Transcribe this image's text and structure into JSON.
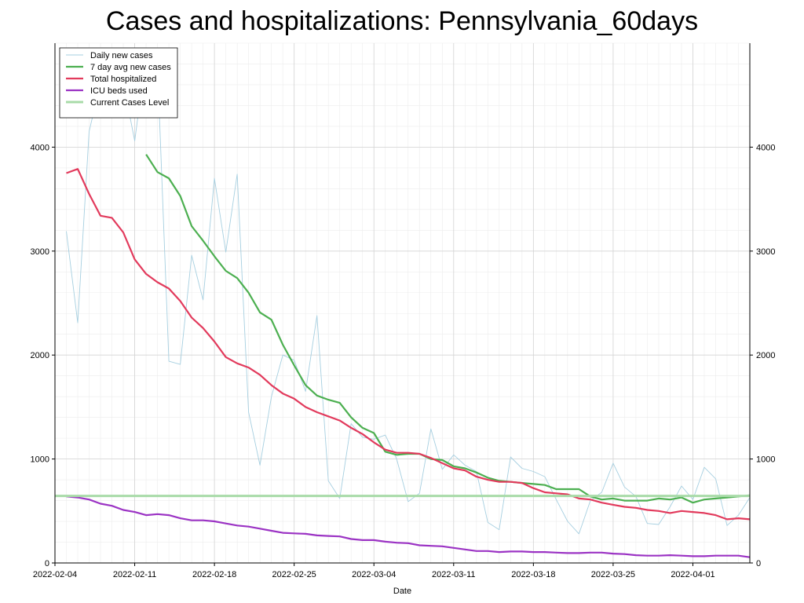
{
  "chart_data": {
    "type": "line",
    "title": "Cases and hospitalizations: Pennsylvania_60days",
    "xlabel": "Date",
    "ylabel": "",
    "x_start": "2022-02-05",
    "x_end": "2022-04-04",
    "xlim": [
      "2022-02-04",
      "2022-04-06"
    ],
    "ylim": [
      0,
      5000
    ],
    "y_ticks": [
      0,
      1000,
      2000,
      3000,
      4000
    ],
    "y_ticks_right": [
      0,
      1000,
      2000,
      3000,
      4000
    ],
    "x_tick_labels": [
      "2022-02-04",
      "2022-02-11",
      "2022-02-18",
      "2022-02-25",
      "2022-03-04",
      "2022-03-11",
      "2022-03-18",
      "2022-03-25",
      "2022-04-01"
    ],
    "grid": true,
    "legend_position": "top-left",
    "series": [
      {
        "name": "Daily new cases",
        "color": "#a6cfe0",
        "style": "thin",
        "values": [
          3190,
          2310,
          4150,
          4620,
          4780,
          4620,
          4060,
          4900,
          4780,
          1940,
          1910,
          2960,
          2530,
          3700,
          2990,
          3740,
          1450,
          940,
          1600,
          2000,
          1950,
          1650,
          2380,
          790,
          620,
          1340,
          1210,
          1190,
          1230,
          1000,
          590,
          670,
          1290,
          900,
          1040,
          940,
          880,
          390,
          320,
          1020,
          910,
          880,
          830,
          610,
          400,
          280,
          600,
          680,
          960,
          730,
          640,
          380,
          370,
          540,
          740,
          610,
          920,
          810,
          360,
          460,
          630
        ]
      },
      {
        "name": "7 day avg new cases",
        "color": "#4caf50",
        "style": "thick",
        "values": [
          null,
          null,
          null,
          null,
          null,
          null,
          null,
          3930,
          3760,
          3700,
          3530,
          3240,
          3100,
          2950,
          2810,
          2740,
          2600,
          2410,
          2340,
          2100,
          1900,
          1710,
          1610,
          1570,
          1540,
          1400,
          1300,
          1250,
          1070,
          1040,
          1050,
          1050,
          1000,
          990,
          930,
          910,
          870,
          820,
          790,
          780,
          770,
          760,
          750,
          710,
          710,
          710,
          640,
          610,
          620,
          600,
          600,
          600,
          620,
          610,
          630,
          580,
          610,
          620,
          630,
          640,
          650
        ]
      },
      {
        "name": "Total hospitalized",
        "color": "#e23a5c",
        "style": "thick",
        "values": [
          3750,
          3790,
          3550,
          3340,
          3320,
          3180,
          2920,
          2780,
          2700,
          2640,
          2520,
          2360,
          2260,
          2130,
          1980,
          1920,
          1880,
          1810,
          1710,
          1630,
          1580,
          1500,
          1450,
          1410,
          1370,
          1300,
          1240,
          1160,
          1090,
          1060,
          1060,
          1050,
          1010,
          960,
          910,
          890,
          830,
          800,
          780,
          780,
          770,
          720,
          680,
          670,
          660,
          620,
          610,
          580,
          560,
          540,
          530,
          510,
          500,
          480,
          500,
          490,
          480,
          460,
          420,
          430,
          420
        ]
      },
      {
        "name": "ICU beds used",
        "color": "#9b33c4",
        "style": "thick",
        "values": [
          640,
          630,
          610,
          570,
          550,
          510,
          490,
          460,
          470,
          460,
          430,
          410,
          410,
          400,
          380,
          360,
          350,
          330,
          310,
          290,
          285,
          280,
          265,
          260,
          255,
          230,
          220,
          220,
          205,
          195,
          190,
          170,
          165,
          160,
          145,
          130,
          115,
          115,
          105,
          110,
          110,
          105,
          105,
          100,
          95,
          95,
          100,
          100,
          90,
          85,
          75,
          70,
          70,
          75,
          70,
          65,
          65,
          70,
          70,
          70,
          55
        ]
      },
      {
        "name": "Current Cases Level",
        "color": "#a8dba8",
        "style": "hline",
        "values": [
          645
        ]
      }
    ]
  }
}
